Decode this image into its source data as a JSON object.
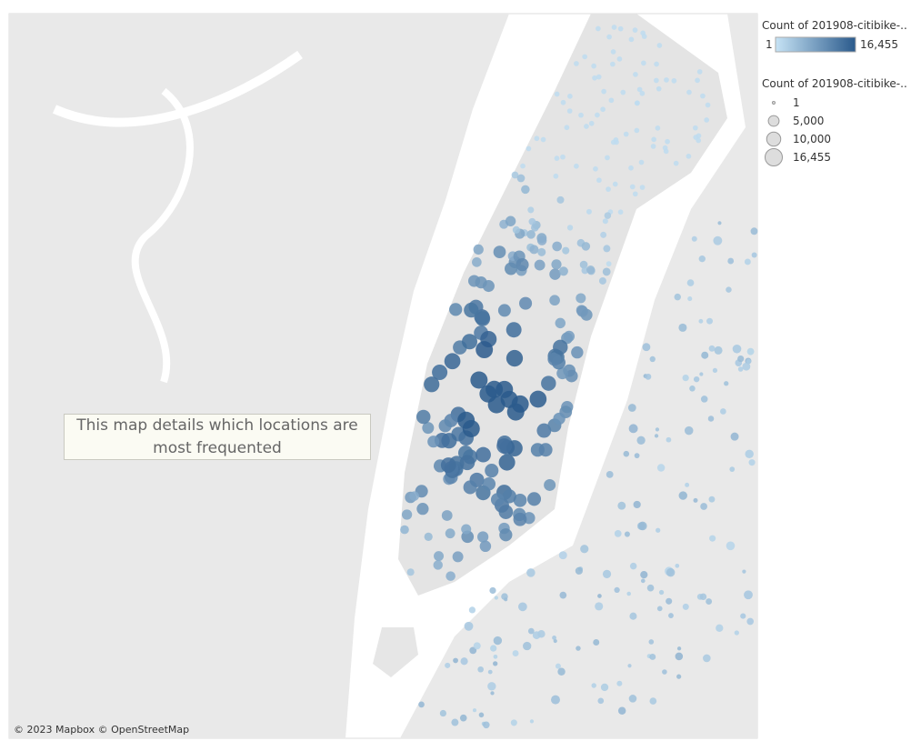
{
  "map": {
    "annotation": "This map details which locations are most frequented",
    "attribution": "© 2023 Mapbox © OpenStreetMap"
  },
  "legend": {
    "color": {
      "title": "Count of 201908-citibike-..",
      "range": [
        1,
        {
          "value": 16455,
          "label": "16,455"
        }
      ]
    },
    "size": {
      "title": "Count of 201908-citibike-..",
      "entries": [
        1,
        {
          "value": 5000,
          "label": "5,000"
        },
        {
          "value": 10000,
          "label": "10,000"
        },
        {
          "value": 16455,
          "label": "16,455"
        }
      ]
    }
  }
}
